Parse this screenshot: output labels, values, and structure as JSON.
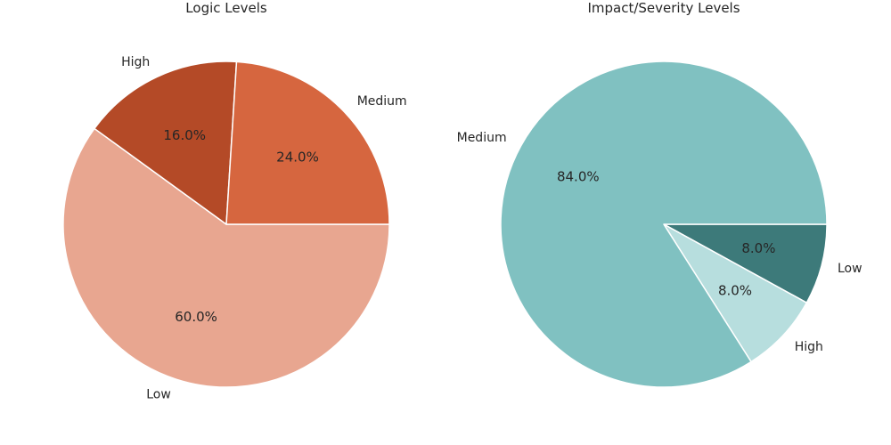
{
  "chart_data": [
    {
      "type": "pie",
      "title": "Logic Levels",
      "start_angle_deg": 0,
      "slices": [
        {
          "label": "Medium",
          "value": 24.0,
          "pct_label": "24.0%",
          "color": "#d6663f"
        },
        {
          "label": "High",
          "value": 16.0,
          "pct_label": "16.0%",
          "color": "#b44a27"
        },
        {
          "label": "Low",
          "value": 60.0,
          "pct_label": "60.0%",
          "color": "#e8a690"
        }
      ]
    },
    {
      "type": "pie",
      "title": "Impact/Severity Levels",
      "start_angle_deg": 0,
      "slices": [
        {
          "label": "Medium",
          "value": 84.0,
          "pct_label": "84.0%",
          "color": "#80c1c1"
        },
        {
          "label": "High",
          "value": 8.0,
          "pct_label": "8.0%",
          "color": "#b7dede"
        },
        {
          "label": "Low",
          "value": 8.0,
          "pct_label": "8.0%",
          "color": "#3d7a7a"
        }
      ]
    }
  ]
}
